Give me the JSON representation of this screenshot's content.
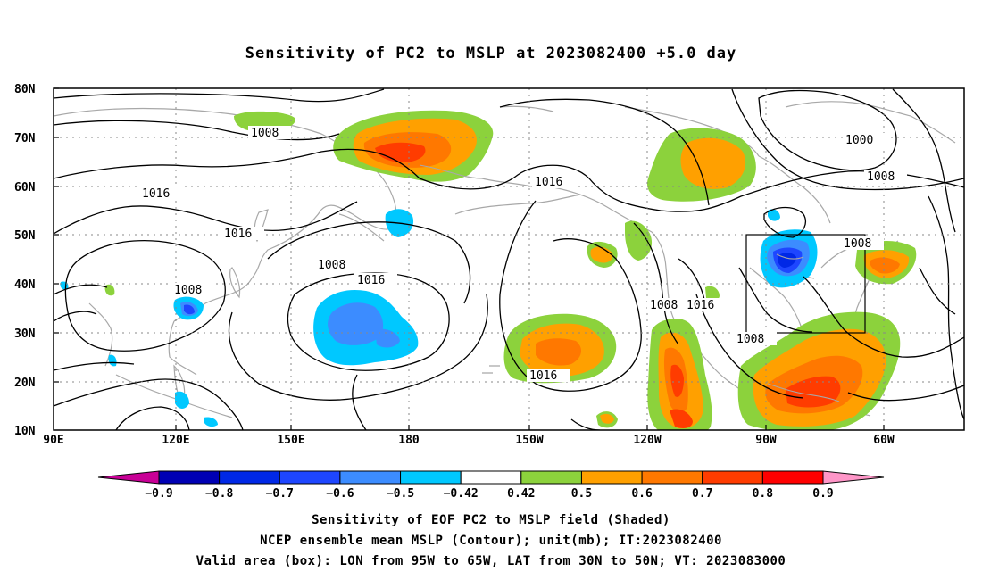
{
  "title": "Sensitivity of PC2 to MSLP at 2023082400 +5.0 day",
  "map": {
    "lat_labels": [
      "80N",
      "70N",
      "60N",
      "50N",
      "40N",
      "30N",
      "20N",
      "10N"
    ],
    "lon_labels": [
      "90E",
      "120E",
      "150E",
      "180",
      "150W",
      "120W",
      "90W",
      "60W"
    ],
    "extent": {
      "lon_west": "90E",
      "lon_east": "30W",
      "lat_south": "10N",
      "lat_north": "80N"
    },
    "gridlines": "dotted",
    "coastlines": "gray",
    "contour_labels": [
      "1008",
      "1016",
      "1016",
      "1008",
      "1016",
      "1008",
      "1016",
      "1008",
      "1016",
      "1008",
      "1016",
      "1008",
      "1000",
      "1008"
    ],
    "valid_box": {
      "lon": [
        "95W",
        "65W"
      ],
      "lat": [
        "30N",
        "50N"
      ]
    }
  },
  "colorbar": {
    "labels": [
      "-0.9",
      "-0.8",
      "-0.7",
      "-0.6",
      "-0.5",
      "-0.42",
      "0.42",
      "0.5",
      "0.6",
      "0.7",
      "0.8",
      "0.9"
    ],
    "colors": [
      "#0000b4",
      "#0028e6",
      "#1e46ff",
      "#3c8cff",
      "#00c8ff",
      "#ffffff",
      "#8cd23c",
      "#ffa000",
      "#ff7800",
      "#ff3c00",
      "#ff0000"
    ],
    "end_colors": {
      "low": "#c80096",
      "high": "#ff96c8"
    }
  },
  "captions": {
    "line1": "Sensitivity of EOF PC2 to MSLP field (Shaded)",
    "line2": "NCEP ensemble mean MSLP (Contour); unit(mb); IT:2023082400",
    "line3": "Valid area (box): LON from 95W to 65W, LAT from 30N to 50N; VT: 2023083000"
  }
}
